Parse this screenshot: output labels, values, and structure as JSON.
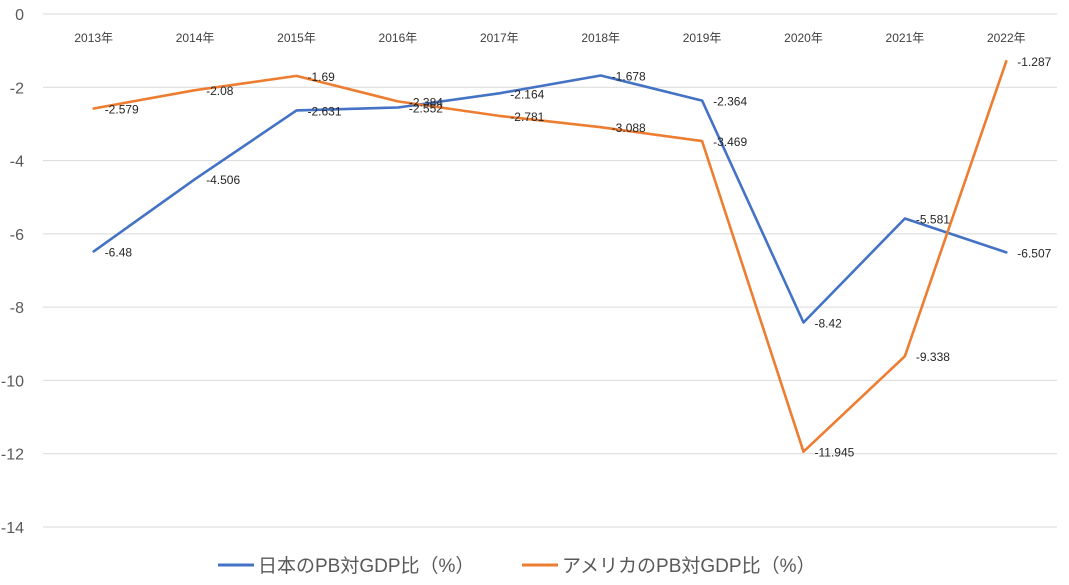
{
  "chart_data": {
    "type": "line",
    "title": "",
    "xlabel": "",
    "ylabel": "",
    "categories": [
      "2013年",
      "2014年",
      "2015年",
      "2016年",
      "2017年",
      "2018年",
      "2019年",
      "2020年",
      "2021年",
      "2022年"
    ],
    "ylim": [
      -14,
      0
    ],
    "yticks": [
      0,
      -2,
      -4,
      -6,
      -8,
      -10,
      -12,
      -14
    ],
    "ytick_labels": [
      "0",
      "-2",
      "-4",
      "-6",
      "-8",
      "-10",
      "-12",
      "-14"
    ],
    "grid": true,
    "x_axis_position": "top",
    "legend_position": "bottom",
    "series": [
      {
        "name": "日本のPB対GDP比（%）",
        "color": "#4472c4",
        "values": [
          -6.48,
          -4.506,
          -2.631,
          -2.552,
          -2.164,
          -1.678,
          -2.364,
          -8.42,
          -5.581,
          -6.507
        ],
        "labels": [
          "-6.48",
          "-4.506",
          "-2.631",
          "-2.552",
          "-2.164",
          "-1.678",
          "-2.364",
          "-8.42",
          "-5.581",
          "-6.507"
        ]
      },
      {
        "name": "アメリカのPB対GDP比（%）",
        "color": "#ed7d31",
        "values": [
          -2.579,
          -2.08,
          -1.69,
          -2.384,
          -2.781,
          -3.088,
          -3.469,
          -11.945,
          -9.338,
          -1.287
        ],
        "labels": [
          "-2.579",
          "-2.08",
          "-1.69",
          "-2.384",
          "-2.781",
          "-3.088",
          "-3.469",
          "-11.945",
          "-9.338",
          "-1.287"
        ]
      }
    ]
  }
}
